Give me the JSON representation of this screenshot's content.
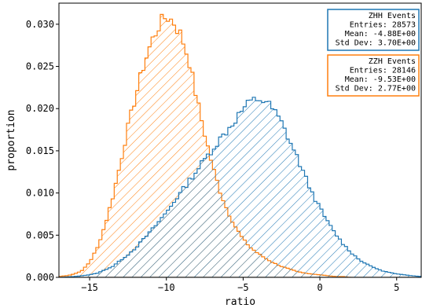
{
  "chart_data": {
    "type": "histogram",
    "xlabel": "ratio",
    "ylabel": "proportion",
    "xlim": [
      -17,
      6.6
    ],
    "ylim": [
      0,
      0.0325
    ],
    "xticks": [
      -15,
      -10,
      -5,
      0,
      5
    ],
    "xtick_labels": [
      "−15",
      "−10",
      "−5",
      "0",
      "5"
    ],
    "yticks": [
      0.0,
      0.005,
      0.01,
      0.015,
      0.02,
      0.025,
      0.03
    ],
    "ytick_labels": [
      "0.000",
      "0.005",
      "0.010",
      "0.015",
      "0.020",
      "0.025",
      "0.030"
    ],
    "bin_range": [
      -17,
      6.6
    ],
    "bin_count": 118,
    "series": [
      {
        "name": "ZZH",
        "color": "#ff7f0e",
        "hatch": "diagonal",
        "curve_x": [
          -17,
          -16.5,
          -16,
          -15.5,
          -15,
          -14.5,
          -14,
          -13.5,
          -13,
          -12.5,
          -12,
          -11.5,
          -11,
          -10.5,
          -10,
          -9.5,
          -9,
          -8.5,
          -8,
          -7.5,
          -7,
          -6.5,
          -6,
          -5.5,
          -5,
          -4.5,
          -4,
          -3.5,
          -3,
          -2.5,
          -2,
          -1.5,
          -1,
          -0.5,
          0,
          0.5,
          1,
          1.5,
          2,
          6.6
        ],
        "curve_y": [
          0.0001,
          0.0002,
          0.0004,
          0.0008,
          0.0018,
          0.0035,
          0.0062,
          0.0095,
          0.0135,
          0.0178,
          0.0215,
          0.025,
          0.0278,
          0.0298,
          0.031,
          0.0302,
          0.0285,
          0.0255,
          0.021,
          0.017,
          0.0132,
          0.0102,
          0.0078,
          0.006,
          0.0045,
          0.0035,
          0.0028,
          0.0022,
          0.0017,
          0.0013,
          0.001,
          0.0007,
          0.0005,
          0.0004,
          0.0003,
          0.0002,
          0.0001,
          0.0001,
          0.0,
          0.0
        ]
      },
      {
        "name": "ZHH",
        "color": "#1f77b4",
        "hatch": "diagonal",
        "curve_x": [
          -17,
          -16,
          -15,
          -14.5,
          -14,
          -13.5,
          -13,
          -12.5,
          -12,
          -11.5,
          -11,
          -10.5,
          -10,
          -9.5,
          -9,
          -8.5,
          -8,
          -7.5,
          -7,
          -6.5,
          -6,
          -5.5,
          -5,
          -4.5,
          -4,
          -3.5,
          -3,
          -2.5,
          -2,
          -1.5,
          -1,
          -0.5,
          0,
          0.5,
          1,
          1.5,
          2,
          2.5,
          3,
          3.5,
          4,
          4.5,
          5,
          5.5,
          6,
          6.6
        ],
        "curve_y": [
          0.0,
          0.0001,
          0.0003,
          0.0005,
          0.0009,
          0.0013,
          0.002,
          0.0027,
          0.0035,
          0.0045,
          0.0055,
          0.0066,
          0.0077,
          0.009,
          0.0102,
          0.0115,
          0.0127,
          0.014,
          0.0152,
          0.0164,
          0.0175,
          0.0187,
          0.02,
          0.0208,
          0.0212,
          0.0208,
          0.0198,
          0.0183,
          0.0163,
          0.0143,
          0.0121,
          0.01,
          0.0082,
          0.0066,
          0.0052,
          0.004,
          0.003,
          0.0022,
          0.0016,
          0.0012,
          0.0008,
          0.0006,
          0.0004,
          0.0003,
          0.0002,
          0.0001
        ]
      }
    ],
    "legend": [
      {
        "series": "ZHH",
        "color": "#1f77b4",
        "lines": [
          "ZHH Events",
          "Entries: 28573",
          "Mean: -4.88E+00",
          "Std Dev: 3.70E+00"
        ]
      },
      {
        "series": "ZZH",
        "color": "#ff7f0e",
        "lines": [
          "ZZH Events",
          "Entries: 28146",
          "Mean: -9.53E+00",
          "Std Dev: 2.77E+00"
        ]
      }
    ],
    "legend_position": "top-right"
  }
}
